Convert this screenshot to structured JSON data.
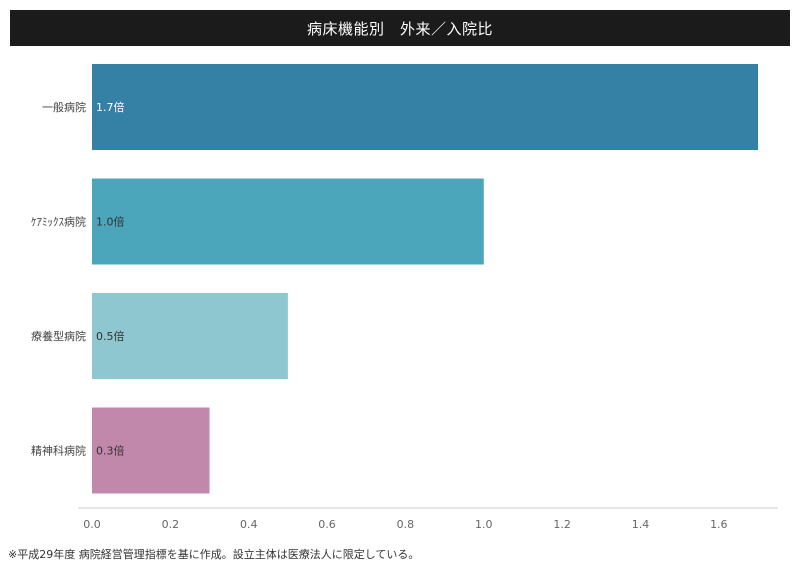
{
  "chart_data": {
    "type": "bar",
    "orientation": "horizontal",
    "title": "病床機能別　外来／入院比",
    "categories": [
      "一般病院",
      "ｹｱﾐｯｸｽ病院",
      "療養型病院",
      "精神科病院"
    ],
    "values": [
      1.7,
      1.0,
      0.5,
      0.3
    ],
    "data_labels": [
      "1.7倍",
      "1.0倍",
      "0.5倍",
      "0.3倍"
    ],
    "colors": [
      "#3580a5",
      "#4ba5bb",
      "#8ec7cf",
      "#c188ab"
    ],
    "xlim": [
      0,
      1.7
    ],
    "x_ticks": [
      "0.0",
      "0.2",
      "0.4",
      "0.6",
      "0.8",
      "1.0",
      "1.2",
      "1.4",
      "1.6"
    ],
    "xlabel": "",
    "ylabel": "",
    "grid": false,
    "legend": "none"
  },
  "footnote": "※平成29年度 病院経営管理指標を基に作成。設立主体は医療法人に限定している。"
}
